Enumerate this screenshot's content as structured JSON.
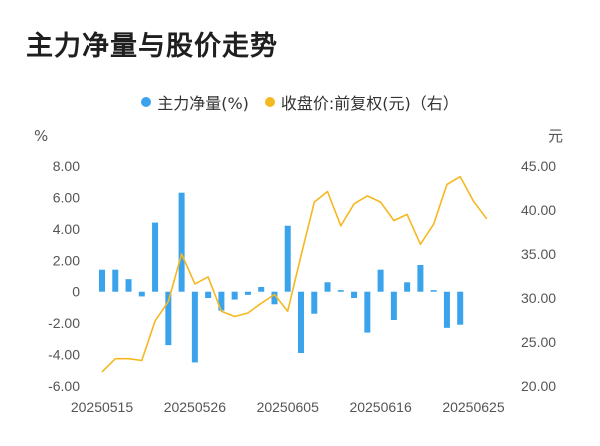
{
  "title": "主力净量与股价走势",
  "legend": {
    "left_series": "主力净量(%)",
    "right_series": "收盘价:前复权(元)（右）"
  },
  "colors": {
    "bar": "#3aa3ec",
    "line": "#f5b820"
  },
  "chart_data": {
    "type": "bar",
    "title": "主力净量与股价走势",
    "left_axis": {
      "unit": "%",
      "ylim": [
        -6,
        8
      ],
      "ticks": [
        "8.00",
        "6.00",
        "4.00",
        "2.00",
        "0",
        "-2.00",
        "-4.00",
        "-6.00"
      ]
    },
    "right_axis": {
      "unit": "元",
      "ylim": [
        20,
        45
      ],
      "ticks": [
        "45.00",
        "40.00",
        "35.00",
        "30.00",
        "25.00",
        "20.00"
      ]
    },
    "x_tick_labels": [
      "20250515",
      "20250526",
      "20250605",
      "20250616",
      "20250625"
    ],
    "x_tick_indices": [
      0,
      7,
      14,
      21,
      28
    ],
    "categories": [
      "20250515",
      "20250516",
      "20250519",
      "20250520",
      "20250521",
      "20250522",
      "20250523",
      "20250526",
      "20250527",
      "20250528",
      "20250529",
      "20250530",
      "20250603",
      "20250604",
      "20250605",
      "20250606",
      "20250609",
      "20250610",
      "20250611",
      "20250612",
      "20250613",
      "20250616",
      "20250617",
      "20250618",
      "20250619",
      "20250620",
      "20250623",
      "20250624",
      "20250625",
      "20250626",
      "20250627"
    ],
    "series": [
      {
        "name": "主力净量(%)",
        "type": "bar",
        "values": [
          1.4,
          1.4,
          0.8,
          -0.3,
          4.4,
          -3.4,
          6.3,
          -4.5,
          -0.4,
          -1.2,
          -0.5,
          -0.2,
          0.3,
          -0.8,
          4.2,
          -3.9,
          -1.4,
          0.6,
          0.1,
          -0.4,
          -2.6,
          1.4,
          -1.8,
          0.6,
          1.7,
          0.1,
          -2.3,
          -2.1,
          0,
          0,
          0
        ]
      },
      {
        "name": "收盘价:前复权(元)（右）",
        "type": "line",
        "values": [
          21.6,
          23.1,
          23.1,
          22.9,
          27.4,
          29.6,
          35.0,
          31.6,
          32.4,
          28.5,
          27.9,
          28.3,
          29.4,
          30.4,
          28.5,
          34.8,
          40.9,
          42.1,
          38.2,
          40.7,
          41.6,
          40.9,
          38.8,
          39.5,
          36.1,
          38.4,
          42.9,
          43.8,
          41.0,
          39.0,
          null
        ]
      }
    ]
  }
}
